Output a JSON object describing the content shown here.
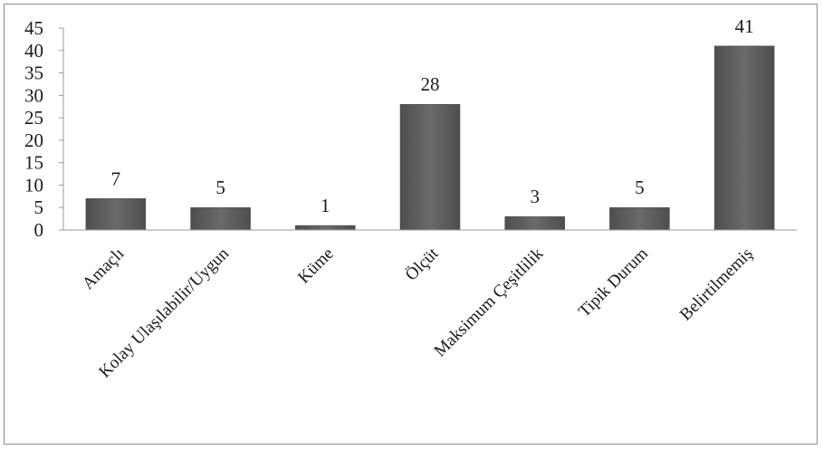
{
  "chart_data": {
    "type": "bar",
    "title": "",
    "xlabel": "",
    "ylabel": "",
    "categories": [
      "Amaçlı",
      "Kolay Ulaşılabilir/Uygun",
      "Küme",
      "Ölçüt",
      "Maksimum Çeşitlilik",
      "Tipik Durum",
      "Belirtilmemiş"
    ],
    "values": [
      7,
      5,
      1,
      28,
      3,
      5,
      41
    ],
    "ylim": [
      0,
      45
    ],
    "yticks": [
      0,
      5,
      10,
      15,
      20,
      25,
      30,
      35,
      40,
      45
    ],
    "data_labels": true,
    "grid": false,
    "legend": false,
    "bar_color": "#5f5f5f",
    "axis_color": "#9a9a9a"
  }
}
